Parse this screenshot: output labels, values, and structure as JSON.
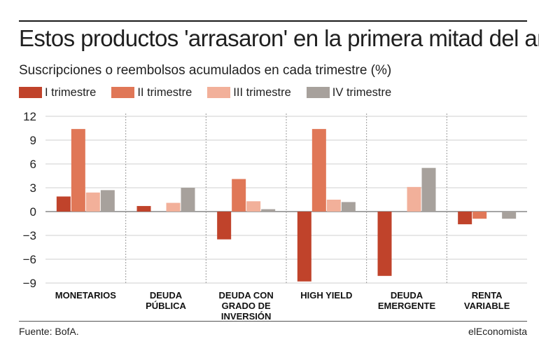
{
  "title": "Estos productos 'arrasaron' en la primera mitad del año",
  "subtitle": "Suscripciones o reembolsos acumulados en cada trimestre (%)",
  "source": "Fuente: BofA.",
  "brand": "elEconomista",
  "chart_data": {
    "type": "bar",
    "categories": [
      [
        "MONETARIOS"
      ],
      [
        "DEUDA",
        "PÚBLICA"
      ],
      [
        "DEUDA CON",
        "GRADO DE",
        "INVERSIÓN"
      ],
      [
        "HIGH YIELD"
      ],
      [
        "DEUDA",
        "EMERGENTE"
      ],
      [
        "RENTA",
        "VARIABLE"
      ]
    ],
    "series": [
      {
        "name": "I trimestre",
        "color": "#c0432b",
        "values": [
          1.9,
          0.7,
          -3.5,
          -8.8,
          -8.1,
          -1.6
        ]
      },
      {
        "name": "II trimestre",
        "color": "#e07757",
        "values": [
          10.4,
          0.0,
          4.1,
          10.4,
          0.0,
          -0.9
        ]
      },
      {
        "name": "III trimestre",
        "color": "#f2b09a",
        "values": [
          2.4,
          1.1,
          1.3,
          1.5,
          3.1,
          0.0
        ]
      },
      {
        "name": "IV trimestre",
        "color": "#a7a19c",
        "values": [
          2.7,
          3.0,
          0.3,
          1.2,
          5.5,
          -0.9
        ]
      }
    ],
    "yticks": [
      "12",
      "9",
      "6",
      "3",
      "0",
      "−3",
      "−6",
      "−9"
    ],
    "ytick_values": [
      12,
      9,
      6,
      3,
      0,
      -3,
      -6,
      -9
    ],
    "ylim": [
      -9,
      12
    ],
    "grid": true,
    "legend_position": "top-left"
  }
}
